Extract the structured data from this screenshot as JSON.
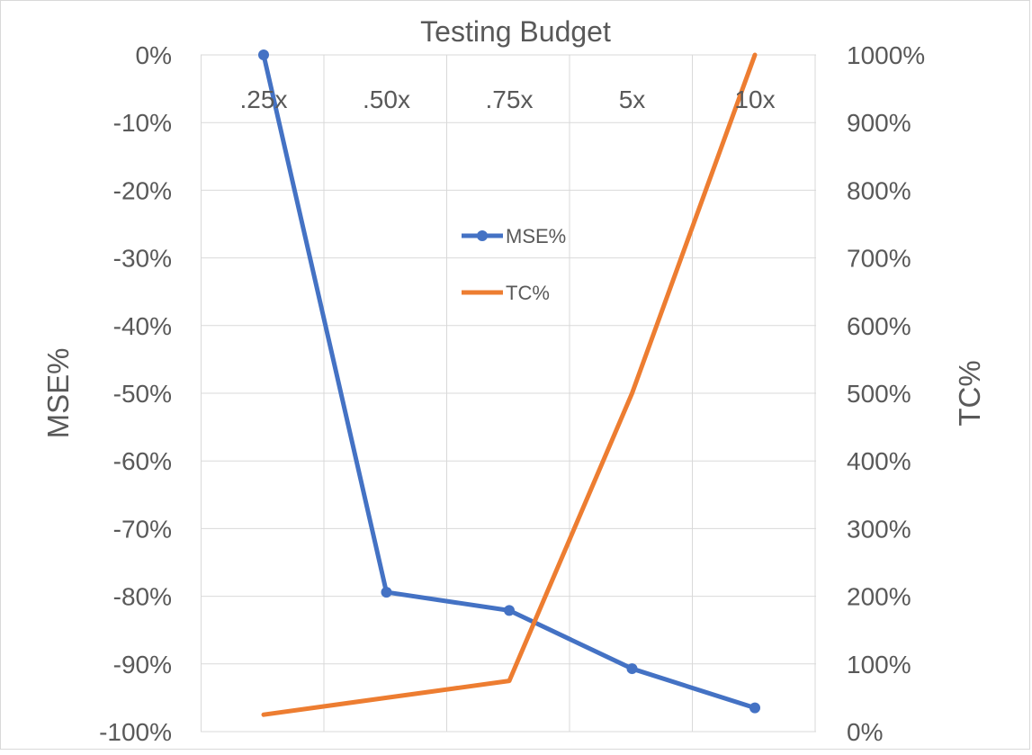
{
  "chart_data": {
    "type": "line",
    "title": "Testing Budget",
    "xlabel": "",
    "categories": [
      ".25x",
      ".50x",
      ".75x",
      "5x",
      "10x"
    ],
    "y_left": {
      "label": "MSE%",
      "lim": [
        -100,
        0
      ],
      "step": 10,
      "ticks": [
        "0%",
        "-10%",
        "-20%",
        "-30%",
        "-40%",
        "-50%",
        "-60%",
        "-70%",
        "-80%",
        "-90%",
        "-100%"
      ]
    },
    "y_right": {
      "label": "TC%",
      "lim": [
        0,
        1000
      ],
      "step": 100,
      "ticks": [
        "1000%",
        "900%",
        "800%",
        "700%",
        "600%",
        "500%",
        "400%",
        "300%",
        "200%",
        "100%",
        "0%"
      ]
    },
    "series": [
      {
        "name": "MSE%",
        "axis": "left",
        "color": "#4472c4",
        "markers": true,
        "values": [
          0,
          -79.4,
          -82.1,
          -90.7,
          -96.5
        ]
      },
      {
        "name": "TC%",
        "axis": "right",
        "color": "#ed7d31",
        "markers": false,
        "values": [
          25,
          50,
          75,
          500,
          1000
        ]
      }
    ],
    "grid": true,
    "legend": "center"
  }
}
